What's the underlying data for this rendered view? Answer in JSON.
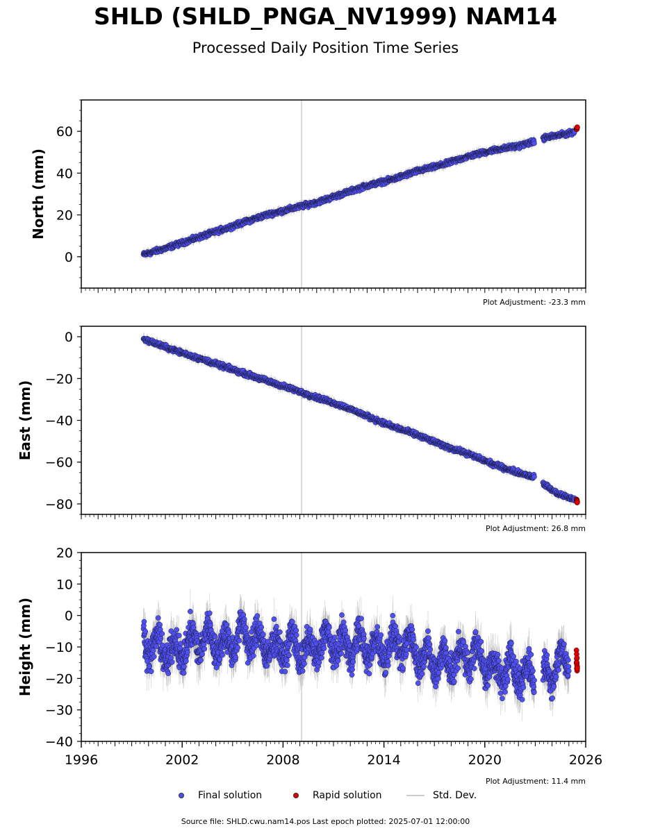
{
  "title": "SHLD (SHLD_PNGA_NV1999) NAM14",
  "subtitle": "Processed Daily Position Time Series",
  "legend": {
    "final": "Final solution",
    "rapid": "Rapid solution",
    "std": "Std. Dev."
  },
  "footer": "Source file: SHLD.cwu.nam14.pos  Last epoch plotted: 2025-07-01 12:00:00",
  "colors": {
    "final": "#5050f0",
    "rapid": "#e00000",
    "std": "#999999",
    "vline": "#cccccc"
  },
  "chart_data": [
    {
      "type": "scatter",
      "ylabel": "North (mm)",
      "adjustment": "Plot Adjustment: -23.3 mm",
      "xlim": [
        1996,
        2026
      ],
      "ylim": [
        -15,
        75
      ],
      "yticks": [
        0,
        20,
        40,
        60
      ],
      "yticklabels": [
        "0",
        "20",
        "40",
        "60"
      ],
      "reference_line_x": 2009.1,
      "series": [
        {
          "name": "Final solution",
          "x": [
            1999.7,
            2001,
            2002.5,
            2004,
            2005.5,
            2007,
            2008.5,
            2010,
            2011.5,
            2013,
            2014.5,
            2016,
            2017.5,
            2019,
            2020.5,
            2022,
            2022.9,
            2023.6,
            2024.3,
            2025.0,
            2025.35
          ],
          "y": [
            1,
            4,
            8,
            12,
            16,
            20,
            23,
            26,
            30,
            34,
            37,
            41,
            44,
            48,
            51,
            53,
            55,
            57,
            58,
            59,
            60
          ]
        },
        {
          "name": "Rapid solution",
          "x": [
            2025.45,
            2025.5
          ],
          "y": [
            61,
            62
          ]
        }
      ]
    },
    {
      "type": "scatter",
      "ylabel": "East (mm)",
      "adjustment": "Plot Adjustment: 26.8 mm",
      "xlim": [
        1996,
        2026
      ],
      "ylim": [
        -85,
        5
      ],
      "yticks": [
        0,
        -20,
        -40,
        -60,
        -80
      ],
      "yticklabels": [
        "0",
        "−20",
        "−40",
        "−60",
        "−80"
      ],
      "reference_line_x": 2009.1,
      "series": [
        {
          "name": "Final solution",
          "x": [
            1999.7,
            2001,
            2002.5,
            2004,
            2005.5,
            2007,
            2008.5,
            2010,
            2011.5,
            2013,
            2014.5,
            2016,
            2017.5,
            2019,
            2020.5,
            2022,
            2022.9,
            2023.6,
            2024.3,
            2025.0,
            2025.35
          ],
          "y": [
            -1,
            -5,
            -9,
            -13,
            -17,
            -21,
            -25,
            -29,
            -33,
            -38,
            -43,
            -47,
            -52,
            -56,
            -61,
            -65,
            -67,
            -71,
            -75,
            -77,
            -78
          ]
        },
        {
          "name": "Rapid solution",
          "x": [
            2025.45,
            2025.5
          ],
          "y": [
            -78,
            -79
          ]
        }
      ]
    },
    {
      "type": "scatter",
      "ylabel": "Height (mm)",
      "adjustment": "Plot Adjustment: 11.4 mm",
      "xlim": [
        1996,
        2026
      ],
      "ylim": [
        -40,
        20
      ],
      "yticks": [
        20,
        10,
        0,
        -10,
        -20,
        -30,
        -40
      ],
      "yticklabels": [
        "20",
        "10",
        "0",
        "−10",
        "−20",
        "−30",
        "−40"
      ],
      "xticks": [
        1996,
        2002,
        2008,
        2014,
        2020,
        2026
      ],
      "xticklabels": [
        "1996",
        "2002",
        "2008",
        "2014",
        "2020",
        "2026"
      ],
      "reference_line_x": 2009.1,
      "series": [
        {
          "name": "Final solution",
          "x": [
            1999.7,
            2000.5,
            2001.5,
            2002.5,
            2003.5,
            2004.5,
            2005.5,
            2006.5,
            2007.5,
            2008.5,
            2009.5,
            2010.5,
            2011.5,
            2012.5,
            2013.5,
            2014.5,
            2015.5,
            2016.5,
            2017.5,
            2018.5,
            2019.5,
            2020.5,
            2021.5,
            2022.5,
            2023.6,
            2024.3,
            2025.0
          ],
          "y": [
            -8,
            -10,
            -12,
            -9,
            -7,
            -10,
            -6,
            -8,
            -11,
            -9,
            -12,
            -8,
            -10,
            -9,
            -11,
            -10,
            -9,
            -14,
            -15,
            -14,
            -12,
            -18,
            -17,
            -19,
            -20,
            -15,
            -14
          ]
        },
        {
          "name": "Rapid solution",
          "x": [
            2025.45,
            2025.5
          ],
          "y": [
            -12,
            -18
          ]
        }
      ]
    }
  ]
}
